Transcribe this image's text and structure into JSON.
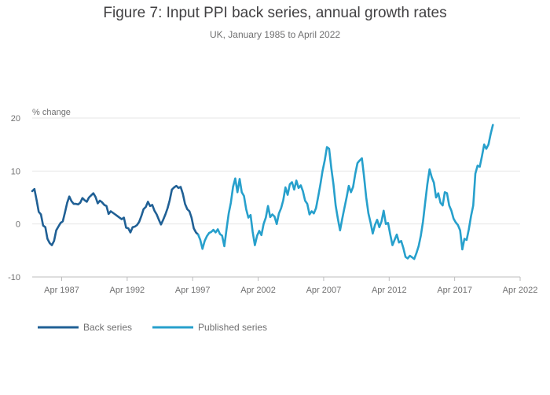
{
  "chart_data": {
    "type": "line",
    "title": "Figure 7: Input PPI back series, annual growth rates",
    "subtitle": "UK, January 1985 to April 2022",
    "ylabel": "% change",
    "xlabel": "",
    "ylim": [
      -10,
      20
    ],
    "yticks": [
      20,
      10,
      0,
      -10
    ],
    "xlim": [
      "1985-01",
      "2022-04"
    ],
    "xticks": [
      "Apr 1987",
      "Apr 1992",
      "Apr 1997",
      "Apr 2002",
      "Apr 2007",
      "Apr 2012",
      "Apr 2017",
      "Apr 2022"
    ],
    "xtick_dates": [
      "1987-04",
      "1992-04",
      "1997-04",
      "2002-04",
      "2007-04",
      "2012-04",
      "2017-04",
      "2022-04"
    ],
    "grid": "horizontal",
    "legend_position": "bottom-left",
    "series": [
      {
        "name": "Back series",
        "color": "#206095",
        "points": [
          [
            "1985-01",
            6.2
          ],
          [
            "1985-03",
            6.6
          ],
          [
            "1985-05",
            4.5
          ],
          [
            "1985-07",
            2.3
          ],
          [
            "1985-09",
            1.8
          ],
          [
            "1985-11",
            -0.3
          ],
          [
            "1986-01",
            -0.6
          ],
          [
            "1986-03",
            -2.8
          ],
          [
            "1986-05",
            -3.6
          ],
          [
            "1986-07",
            -4.0
          ],
          [
            "1986-09",
            -3.2
          ],
          [
            "1986-11",
            -1.2
          ],
          [
            "1987-01",
            -0.5
          ],
          [
            "1987-03",
            0.2
          ],
          [
            "1987-05",
            0.5
          ],
          [
            "1987-07",
            2.2
          ],
          [
            "1987-09",
            4.0
          ],
          [
            "1987-11",
            5.2
          ],
          [
            "1988-01",
            4.3
          ],
          [
            "1988-03",
            3.8
          ],
          [
            "1988-05",
            3.8
          ],
          [
            "1988-07",
            3.7
          ],
          [
            "1988-09",
            4.0
          ],
          [
            "1988-11",
            4.9
          ],
          [
            "1989-01",
            4.5
          ],
          [
            "1989-03",
            4.2
          ],
          [
            "1989-05",
            5.0
          ],
          [
            "1989-07",
            5.4
          ],
          [
            "1989-09",
            5.8
          ],
          [
            "1989-11",
            5.1
          ],
          [
            "1990-01",
            3.9
          ],
          [
            "1990-03",
            4.4
          ],
          [
            "1990-05",
            4.1
          ],
          [
            "1990-07",
            3.6
          ],
          [
            "1990-09",
            3.4
          ],
          [
            "1990-11",
            1.9
          ],
          [
            "1991-01",
            2.4
          ],
          [
            "1991-03",
            2.1
          ],
          [
            "1991-05",
            1.8
          ],
          [
            "1991-07",
            1.5
          ],
          [
            "1991-09",
            1.2
          ],
          [
            "1991-11",
            0.9
          ],
          [
            "1992-01",
            1.2
          ],
          [
            "1992-03",
            -0.7
          ],
          [
            "1992-05",
            -0.8
          ],
          [
            "1992-07",
            -1.6
          ],
          [
            "1992-09",
            -0.6
          ],
          [
            "1992-11",
            -0.5
          ],
          [
            "1993-01",
            -0.2
          ],
          [
            "1993-03",
            0.4
          ],
          [
            "1993-05",
            1.5
          ],
          [
            "1993-07",
            2.8
          ],
          [
            "1993-09",
            3.2
          ],
          [
            "1993-11",
            4.2
          ],
          [
            "1994-01",
            3.4
          ],
          [
            "1994-03",
            3.6
          ],
          [
            "1994-05",
            2.5
          ],
          [
            "1994-07",
            1.8
          ],
          [
            "1994-09",
            0.8
          ],
          [
            "1994-11",
            -0.1
          ],
          [
            "1995-01",
            0.8
          ],
          [
            "1995-03",
            1.8
          ],
          [
            "1995-05",
            3.0
          ],
          [
            "1995-07",
            4.5
          ],
          [
            "1995-09",
            6.5
          ],
          [
            "1995-11",
            6.9
          ],
          [
            "1996-01",
            7.2
          ],
          [
            "1996-03",
            6.8
          ],
          [
            "1996-05",
            7.0
          ],
          [
            "1996-07",
            5.7
          ],
          [
            "1996-09",
            3.8
          ],
          [
            "1996-11",
            2.8
          ],
          [
            "1997-01",
            2.4
          ],
          [
            "1997-03",
            1.2
          ],
          [
            "1997-05",
            -0.8
          ],
          [
            "1997-07",
            -1.6
          ],
          [
            "1997-09",
            -2.0
          ]
        ]
      },
      {
        "name": "Published series",
        "color": "#27a0cc",
        "points": [
          [
            "1997-09",
            -2.0
          ],
          [
            "1997-11",
            -3.0
          ],
          [
            "1998-01",
            -4.7
          ],
          [
            "1998-03",
            -3.2
          ],
          [
            "1998-05",
            -2.3
          ],
          [
            "1998-07",
            -1.7
          ],
          [
            "1998-09",
            -1.5
          ],
          [
            "1998-11",
            -1.1
          ],
          [
            "1999-01",
            -1.6
          ],
          [
            "1999-03",
            -1.0
          ],
          [
            "1999-05",
            -1.9
          ],
          [
            "1999-07",
            -2.2
          ],
          [
            "1999-09",
            -4.2
          ],
          [
            "1999-11",
            -1.0
          ],
          [
            "2000-01",
            2.0
          ],
          [
            "2000-03",
            4.0
          ],
          [
            "2000-05",
            7.0
          ],
          [
            "2000-07",
            8.6
          ],
          [
            "2000-09",
            6.0
          ],
          [
            "2000-11",
            8.5
          ],
          [
            "2001-01",
            6.0
          ],
          [
            "2001-03",
            5.3
          ],
          [
            "2001-05",
            2.8
          ],
          [
            "2001-07",
            1.2
          ],
          [
            "2001-09",
            1.7
          ],
          [
            "2001-11",
            -1.5
          ],
          [
            "2002-01",
            -4.0
          ],
          [
            "2002-03",
            -2.2
          ],
          [
            "2002-05",
            -1.3
          ],
          [
            "2002-07",
            -2.1
          ],
          [
            "2002-09",
            0.0
          ],
          [
            "2002-11",
            1.2
          ],
          [
            "2003-01",
            3.4
          ],
          [
            "2003-03",
            1.3
          ],
          [
            "2003-05",
            1.8
          ],
          [
            "2003-07",
            1.4
          ],
          [
            "2003-09",
            0.0
          ],
          [
            "2003-11",
            2.0
          ],
          [
            "2004-01",
            3.0
          ],
          [
            "2004-03",
            4.5
          ],
          [
            "2004-05",
            6.9
          ],
          [
            "2004-07",
            5.5
          ],
          [
            "2004-09",
            7.5
          ],
          [
            "2004-11",
            7.9
          ],
          [
            "2005-01",
            6.5
          ],
          [
            "2005-03",
            8.2
          ],
          [
            "2005-05",
            6.8
          ],
          [
            "2005-07",
            7.3
          ],
          [
            "2005-09",
            6.2
          ],
          [
            "2005-11",
            4.4
          ],
          [
            "2006-01",
            3.8
          ],
          [
            "2006-03",
            1.8
          ],
          [
            "2006-05",
            2.4
          ],
          [
            "2006-07",
            2.0
          ],
          [
            "2006-09",
            3.0
          ],
          [
            "2006-11",
            5.2
          ],
          [
            "2007-01",
            7.5
          ],
          [
            "2007-03",
            10.0
          ],
          [
            "2007-05",
            12.0
          ],
          [
            "2007-07",
            14.5
          ],
          [
            "2007-09",
            14.2
          ],
          [
            "2007-11",
            10.5
          ],
          [
            "2008-01",
            7.5
          ],
          [
            "2008-03",
            3.5
          ],
          [
            "2008-05",
            1.0
          ],
          [
            "2008-07",
            -1.2
          ],
          [
            "2008-09",
            1.0
          ],
          [
            "2008-11",
            3.0
          ],
          [
            "2009-01",
            5.0
          ],
          [
            "2009-03",
            7.2
          ],
          [
            "2009-05",
            6.0
          ],
          [
            "2009-07",
            7.0
          ],
          [
            "2009-09",
            9.5
          ],
          [
            "2009-11",
            11.5
          ],
          [
            "2010-01",
            12.0
          ],
          [
            "2010-03",
            12.4
          ],
          [
            "2010-05",
            9.0
          ],
          [
            "2010-07",
            5.0
          ],
          [
            "2010-09",
            2.0
          ],
          [
            "2010-11",
            0.2
          ],
          [
            "2011-01",
            -1.8
          ],
          [
            "2011-03",
            -0.2
          ],
          [
            "2011-05",
            0.8
          ],
          [
            "2011-07",
            -0.6
          ],
          [
            "2011-09",
            0.5
          ],
          [
            "2011-11",
            2.5
          ],
          [
            "2012-01",
            0.0
          ],
          [
            "2012-03",
            0.2
          ],
          [
            "2012-05",
            -2.0
          ],
          [
            "2012-07",
            -4.0
          ],
          [
            "2012-09",
            -3.0
          ],
          [
            "2012-11",
            -2.0
          ],
          [
            "2013-01",
            -3.5
          ],
          [
            "2013-03",
            -3.2
          ],
          [
            "2013-05",
            -4.5
          ],
          [
            "2013-07",
            -6.2
          ],
          [
            "2013-09",
            -6.5
          ],
          [
            "2013-11",
            -6.0
          ],
          [
            "2014-01",
            -6.3
          ],
          [
            "2014-03",
            -6.6
          ],
          [
            "2014-05",
            -5.5
          ],
          [
            "2014-07",
            -4.2
          ],
          [
            "2014-09",
            -2.2
          ],
          [
            "2014-11",
            0.5
          ],
          [
            "2015-01",
            4.0
          ],
          [
            "2015-03",
            7.5
          ],
          [
            "2015-05",
            10.3
          ],
          [
            "2015-07",
            8.8
          ],
          [
            "2015-09",
            7.8
          ],
          [
            "2015-11",
            5.0
          ],
          [
            "2016-01",
            5.8
          ],
          [
            "2016-03",
            4.0
          ],
          [
            "2016-05",
            3.5
          ],
          [
            "2016-07",
            6.0
          ],
          [
            "2016-09",
            5.8
          ],
          [
            "2016-11",
            3.5
          ],
          [
            "2017-01",
            2.5
          ],
          [
            "2017-03",
            1.0
          ],
          [
            "2017-05",
            0.3
          ],
          [
            "2017-07",
            -0.2
          ],
          [
            "2017-09",
            -1.2
          ],
          [
            "2017-11",
            -4.8
          ],
          [
            "2018-01",
            -2.8
          ],
          [
            "2018-03",
            -3.0
          ],
          [
            "2018-05",
            -1.0
          ],
          [
            "2018-07",
            1.5
          ],
          [
            "2018-09",
            3.5
          ],
          [
            "2018-11",
            9.5
          ],
          [
            "2019-01",
            11.0
          ],
          [
            "2019-03",
            10.8
          ],
          [
            "2019-05",
            12.8
          ],
          [
            "2019-07",
            15.0
          ],
          [
            "2019-09",
            14.2
          ],
          [
            "2019-11",
            15.0
          ],
          [
            "2020-01",
            17.0
          ],
          [
            "2020-03",
            18.7
          ]
        ]
      }
    ]
  }
}
